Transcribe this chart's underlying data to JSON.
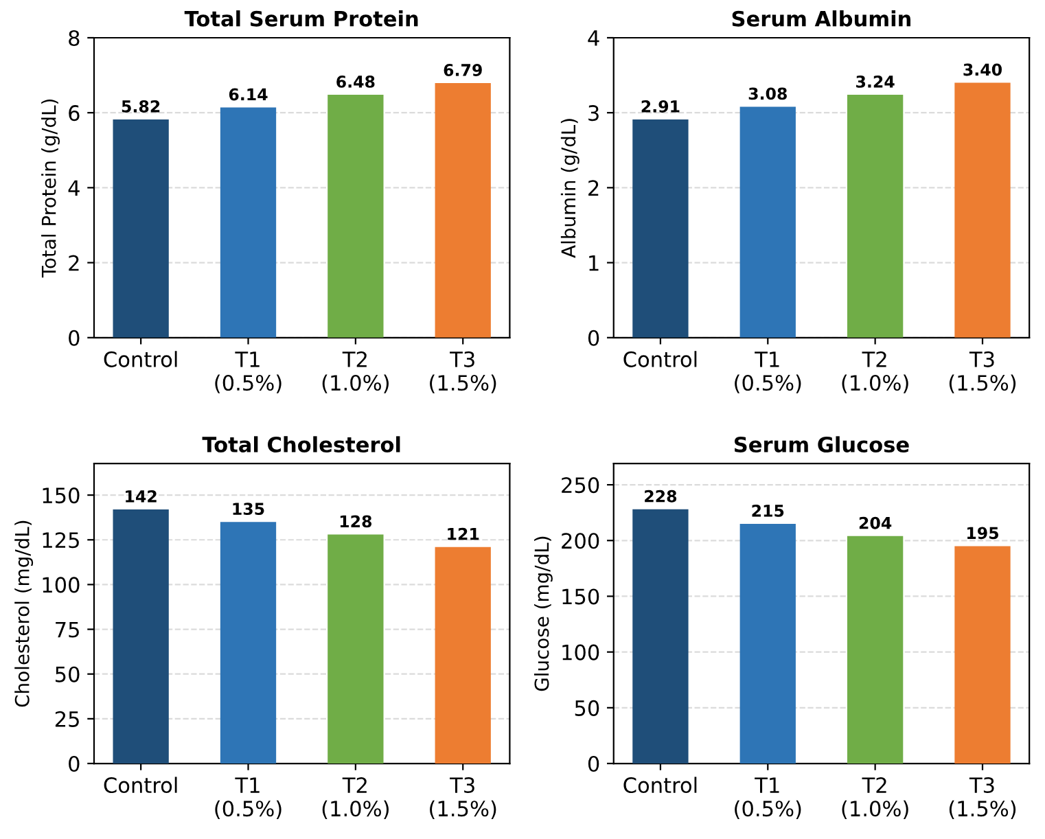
{
  "chart_data": [
    {
      "type": "bar",
      "title": "Total Serum Protein",
      "ylabel": "Total Protein (g/dL)",
      "categories": [
        "Control",
        "T1\n(0.5%)",
        "T2\n(1.0%)",
        "T3\n(1.5%)"
      ],
      "values": [
        5.82,
        6.14,
        6.48,
        6.79
      ],
      "value_labels": [
        "5.82",
        "6.14",
        "6.48",
        "6.79"
      ],
      "colors": [
        "#1f4e79",
        "#2e75b6",
        "#70ad47",
        "#ed7d31"
      ],
      "ylim": [
        0,
        8
      ],
      "yticks": [
        0,
        2,
        4,
        6,
        8
      ],
      "grid": "y"
    },
    {
      "type": "bar",
      "title": "Serum Albumin",
      "ylabel": "Albumin (g/dL)",
      "categories": [
        "Control",
        "T1\n(0.5%)",
        "T2\n(1.0%)",
        "T3\n(1.5%)"
      ],
      "values": [
        2.91,
        3.08,
        3.24,
        3.4
      ],
      "value_labels": [
        "2.91",
        "3.08",
        "3.24",
        "3.40"
      ],
      "colors": [
        "#1f4e79",
        "#2e75b6",
        "#70ad47",
        "#ed7d31"
      ],
      "ylim": [
        0,
        4
      ],
      "yticks": [
        0,
        1,
        2,
        3,
        4
      ],
      "grid": "y"
    },
    {
      "type": "bar",
      "title": "Total Cholesterol",
      "ylabel": "Cholesterol (mg/dL)",
      "categories": [
        "Control",
        "T1\n(0.5%)",
        "T2\n(1.0%)",
        "T3\n(1.5%)"
      ],
      "values": [
        142,
        135,
        128,
        121
      ],
      "data_labels": true,
      "colors": [
        "#1f4e79",
        "#2e75b6",
        "#70ad47",
        "#ed7d31"
      ],
      "ylim": [
        0,
        167.6
      ],
      "yticks": [
        0,
        25,
        50,
        75,
        100,
        125,
        150
      ],
      "grid": "y"
    },
    {
      "type": "bar",
      "title": "Serum Glucose",
      "ylabel": "Glucose (mg/dL)",
      "categories": [
        "Control",
        "T1\n(0.5%)",
        "T2\n(1.0%)",
        "T3\n(1.5%)"
      ],
      "values": [
        228,
        215,
        204,
        195
      ],
      "data_labels": true,
      "colors": [
        "#1f4e79",
        "#2e75b6",
        "#70ad47",
        "#ed7d31"
      ],
      "ylim": [
        0,
        269
      ],
      "yticks": [
        0,
        50,
        100,
        150,
        200,
        250
      ],
      "grid": "y"
    }
  ]
}
